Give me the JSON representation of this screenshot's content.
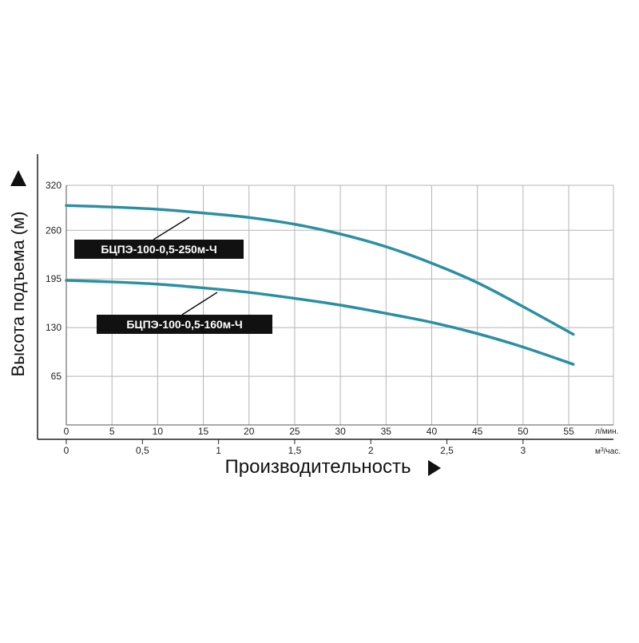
{
  "chart_data": {
    "type": "line",
    "title": "",
    "ylabel": "Высота подъема (м)",
    "xlabel": "Производительность",
    "ylim": [
      0,
      320
    ],
    "y_ticks": [
      "320",
      "260",
      "195",
      "130",
      "65"
    ],
    "y_tick_values": [
      320,
      260,
      195,
      130,
      65
    ],
    "x_primary": {
      "unit": "л/мин.",
      "ticks": [
        "0",
        "5",
        "10",
        "15",
        "20",
        "25",
        "30",
        "35",
        "40",
        "45",
        "50",
        "55"
      ],
      "values": [
        0,
        5,
        10,
        15,
        20,
        25,
        30,
        35,
        40,
        45,
        50,
        55
      ],
      "range": [
        0,
        55
      ]
    },
    "x_secondary": {
      "unit_prefix": "м",
      "unit_sup": "3",
      "unit_suffix": "/час.",
      "ticks": [
        "0",
        "0,5",
        "1",
        "1,5",
        "2",
        "2,5",
        "3"
      ],
      "values": [
        0,
        0.5,
        1,
        1.5,
        2,
        2.5,
        3
      ]
    },
    "grid": true,
    "series_color": "#2a8fa3",
    "series": [
      {
        "name": "БЦПЭ-100-0,5-250м-Ч",
        "x": [
          0,
          5,
          10,
          15,
          20,
          25,
          30,
          35,
          40,
          45,
          50,
          55.5
        ],
        "y": [
          293,
          291,
          288,
          283,
          277,
          268,
          255,
          238,
          216,
          190,
          158,
          121
        ]
      },
      {
        "name": "БЦПЭ-100-0,5-160м-Ч",
        "x": [
          0,
          5,
          10,
          15,
          20,
          25,
          30,
          35,
          40,
          45,
          50,
          55.5
        ],
        "y": [
          193,
          191,
          188,
          183,
          177,
          169,
          160,
          149,
          137,
          122,
          104,
          81
        ]
      }
    ]
  }
}
